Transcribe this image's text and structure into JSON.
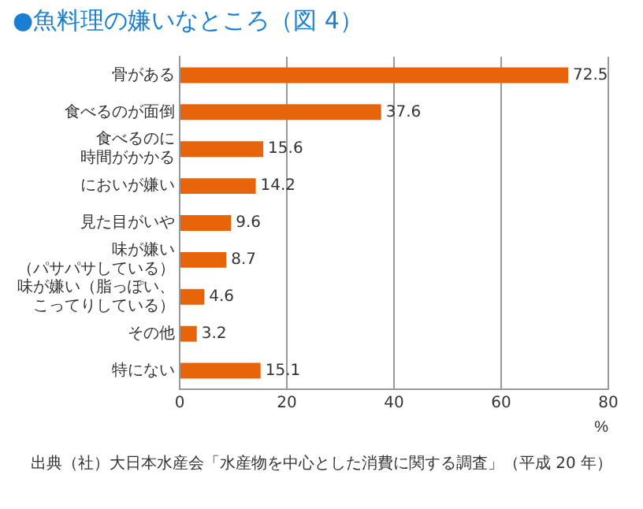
{
  "chart_data": {
    "type": "bar",
    "orientation": "horizontal",
    "title": "●魚料理の嫌いなところ（図 4）",
    "xlabel": "%",
    "categories": [
      "骨がある",
      "食べるのが面倒",
      "食べるのに時間がかかる",
      "においが嫌い",
      "見た目がいや",
      "味が嫌い（パサパサしている）",
      "味が嫌い（脂っぽい、こってりしている）",
      "その他",
      "特にない"
    ],
    "values": [
      72.5,
      37.6,
      15.6,
      14.2,
      9.6,
      8.7,
      4.6,
      3.2,
      15.1
    ],
    "color": "#e8640a",
    "xlim": [
      0,
      80
    ],
    "xticks": [
      0,
      20,
      40,
      60,
      80
    ],
    "grid": "x",
    "data_labels": true,
    "legend": false,
    "annotations": [
      "出典（社）大日本水産会「水産物を中心とした消費に関する調査」（平成 20 年）"
    ]
  }
}
